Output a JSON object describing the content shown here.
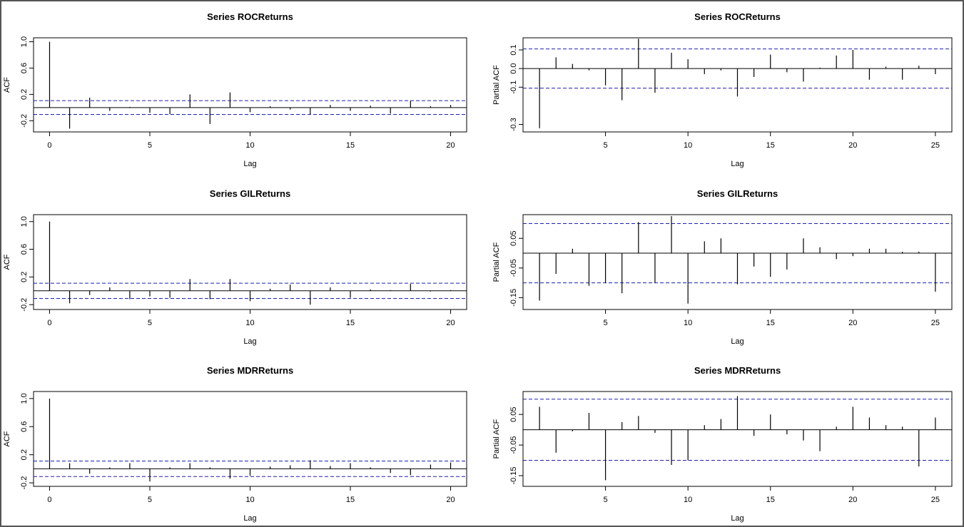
{
  "chart_data": [
    {
      "type": "bar",
      "kind": "acf",
      "title": "Series  ROCReturns",
      "xlabel": "Lag",
      "ylabel": "ACF",
      "xlim": [
        -0.8,
        20.8
      ],
      "ylim": [
        -0.37,
        1.06
      ],
      "xticks": [
        0,
        5,
        10,
        15,
        20
      ],
      "xtick_labels": [
        "0",
        "5",
        "10",
        "15",
        "20"
      ],
      "yticks": [
        -0.2,
        0.2,
        0.6,
        1.0
      ],
      "ytick_labels": [
        "-0.2",
        "0.2",
        "0.6",
        "1.0"
      ],
      "ci": 0.105,
      "x": [
        0,
        1,
        2,
        3,
        4,
        5,
        6,
        7,
        8,
        9,
        10,
        11,
        12,
        13,
        14,
        15,
        16,
        17,
        18,
        19,
        20
      ],
      "values": [
        1.0,
        -0.32,
        0.15,
        -0.05,
        0.01,
        -0.08,
        -0.1,
        0.2,
        -0.25,
        0.23,
        -0.07,
        0.02,
        -0.03,
        -0.1,
        0.04,
        -0.05,
        0.03,
        -0.09,
        0.1,
        0.02,
        0.04
      ]
    },
    {
      "type": "bar",
      "kind": "pacf",
      "title": "Series  ROCReturns",
      "xlabel": "Lag",
      "ylabel": "Partial ACF",
      "xlim": [
        0,
        26
      ],
      "ylim": [
        -0.34,
        0.165
      ],
      "xticks": [
        5,
        10,
        15,
        20,
        25
      ],
      "xtick_labels": [
        "5",
        "10",
        "15",
        "20",
        "25"
      ],
      "yticks": [
        -0.3,
        -0.1,
        0.0,
        0.1
      ],
      "ytick_labels": [
        "-0.3",
        "-0.1",
        "0.0",
        "0.1"
      ],
      "ci": 0.105,
      "x": [
        1,
        2,
        3,
        4,
        5,
        6,
        7,
        8,
        9,
        10,
        11,
        12,
        13,
        14,
        15,
        16,
        17,
        18,
        19,
        20,
        21,
        22,
        23,
        24,
        25
      ],
      "values": [
        -0.32,
        0.06,
        0.025,
        -0.01,
        -0.09,
        -0.17,
        0.16,
        -0.13,
        0.085,
        0.05,
        -0.03,
        -0.01,
        -0.15,
        -0.045,
        0.075,
        -0.02,
        -0.07,
        0.005,
        0.07,
        0.1,
        -0.06,
        0.01,
        -0.06,
        0.015,
        -0.03
      ]
    },
    {
      "type": "bar",
      "kind": "acf",
      "title": "Series  GILReturns",
      "xlabel": "Lag",
      "ylabel": "ACF",
      "xlim": [
        -0.8,
        20.8
      ],
      "ylim": [
        -0.27,
        1.1
      ],
      "xticks": [
        0,
        5,
        10,
        15,
        20
      ],
      "xtick_labels": [
        "0",
        "5",
        "10",
        "15",
        "20"
      ],
      "yticks": [
        -0.2,
        0.2,
        0.6,
        1.0
      ],
      "ytick_labels": [
        "-0.2",
        "0.2",
        "0.6",
        "1.0"
      ],
      "ci": 0.11,
      "x": [
        0,
        1,
        2,
        3,
        4,
        5,
        6,
        7,
        8,
        9,
        10,
        11,
        12,
        13,
        14,
        15,
        16,
        17,
        18,
        19,
        20
      ],
      "values": [
        1.0,
        -0.18,
        -0.06,
        0.05,
        -0.12,
        -0.08,
        -0.1,
        0.17,
        -0.12,
        0.17,
        -0.15,
        0.03,
        0.09,
        -0.2,
        0.05,
        -0.1,
        0.02,
        0.01,
        0.1,
        -0.01,
        0.01
      ]
    },
    {
      "type": "bar",
      "kind": "pacf",
      "title": "Series  GILReturns",
      "xlabel": "Lag",
      "ylabel": "Partial ACF",
      "xlim": [
        0,
        26
      ],
      "ylim": [
        -0.19,
        0.13
      ],
      "xticks": [
        5,
        10,
        15,
        20,
        25
      ],
      "xtick_labels": [
        "5",
        "10",
        "15",
        "20",
        "25"
      ],
      "yticks": [
        -0.15,
        -0.05,
        0.05
      ],
      "ytick_labels": [
        "-0.15",
        "-0.05",
        "0.05"
      ],
      "ci": 0.1,
      "x": [
        1,
        2,
        3,
        4,
        5,
        6,
        7,
        8,
        9,
        10,
        11,
        12,
        13,
        14,
        15,
        16,
        17,
        18,
        19,
        20,
        21,
        22,
        23,
        24,
        25
      ],
      "values": [
        -0.16,
        -0.07,
        0.015,
        -0.11,
        -0.1,
        -0.135,
        0.105,
        -0.1,
        0.125,
        -0.17,
        0.04,
        0.05,
        -0.105,
        -0.045,
        -0.08,
        -0.055,
        0.05,
        0.02,
        -0.02,
        -0.01,
        0.015,
        0.015,
        0.005,
        0.005,
        -0.13
      ]
    },
    {
      "type": "bar",
      "kind": "acf",
      "title": "Series  MDRReturns",
      "xlabel": "Lag",
      "ylabel": "ACF",
      "xlim": [
        -0.8,
        20.8
      ],
      "ylim": [
        -0.25,
        1.1
      ],
      "xticks": [
        0,
        5,
        10,
        15,
        20
      ],
      "xtick_labels": [
        "0",
        "5",
        "10",
        "15",
        "20"
      ],
      "yticks": [
        -0.2,
        0.2,
        0.6,
        1.0
      ],
      "ytick_labels": [
        "-0.2",
        "0.2",
        "0.6",
        "1.0"
      ],
      "ci": 0.11,
      "x": [
        0,
        1,
        2,
        3,
        4,
        5,
        6,
        7,
        8,
        9,
        10,
        11,
        12,
        13,
        14,
        15,
        16,
        17,
        18,
        19,
        20
      ],
      "values": [
        1.0,
        0.08,
        -0.07,
        0.02,
        0.08,
        -0.18,
        0.02,
        0.08,
        0.02,
        -0.14,
        -0.1,
        0.03,
        0.05,
        0.12,
        0.04,
        0.08,
        0.02,
        -0.06,
        -0.09,
        0.06,
        0.09
      ]
    },
    {
      "type": "bar",
      "kind": "pacf",
      "title": "Series  MDRReturns",
      "xlabel": "Lag",
      "ylabel": "Partial ACF",
      "xlim": [
        0,
        26
      ],
      "ylim": [
        -0.185,
        0.125
      ],
      "xticks": [
        5,
        10,
        15,
        20,
        25
      ],
      "xtick_labels": [
        "5",
        "10",
        "15",
        "20",
        "25"
      ],
      "yticks": [
        -0.15,
        -0.05,
        0.05
      ],
      "ytick_labels": [
        "-0.15",
        "-0.05",
        "0.05"
      ],
      "ci": 0.1,
      "x": [
        1,
        2,
        3,
        4,
        5,
        6,
        7,
        8,
        9,
        10,
        11,
        12,
        13,
        14,
        15,
        16,
        17,
        18,
        19,
        20,
        21,
        22,
        23,
        24,
        25
      ],
      "values": [
        0.075,
        -0.075,
        -0.005,
        0.055,
        -0.165,
        0.025,
        0.045,
        -0.01,
        -0.115,
        -0.1,
        0.015,
        0.035,
        0.11,
        -0.02,
        0.05,
        -0.015,
        -0.035,
        -0.07,
        0.01,
        0.075,
        0.04,
        0.015,
        0.01,
        -0.12,
        0.04
      ]
    }
  ]
}
